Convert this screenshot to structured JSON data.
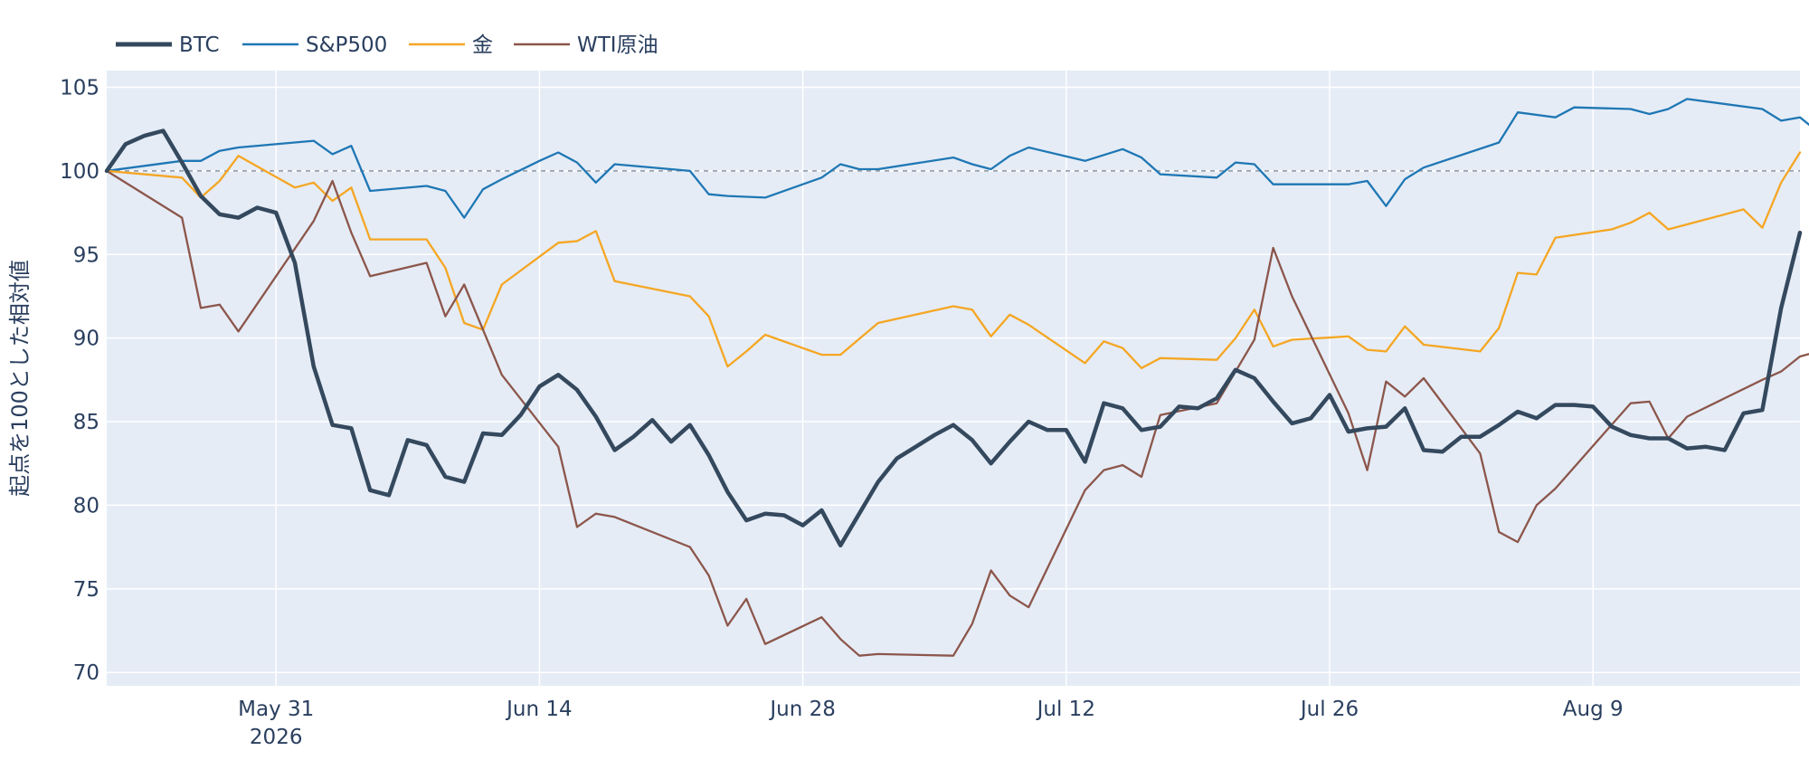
{
  "chart_data": {
    "type": "line",
    "title": "",
    "xlabel": "",
    "ylabel": "起点を100とした相対値",
    "x_start": "2026-05-22",
    "x_end": "2026-08-20",
    "x_ticks": [
      {
        "date": "2026-05-31",
        "label": "May 31",
        "sublabel": "2026"
      },
      {
        "date": "2026-06-14",
        "label": "Jun 14",
        "sublabel": ""
      },
      {
        "date": "2026-06-28",
        "label": "Jun 28",
        "sublabel": ""
      },
      {
        "date": "2026-07-12",
        "label": "Jul 12",
        "sublabel": ""
      },
      {
        "date": "2026-07-26",
        "label": "Jul 26",
        "sublabel": ""
      },
      {
        "date": "2026-08-09",
        "label": "Aug 9",
        "sublabel": ""
      }
    ],
    "ylim": [
      69.2,
      106.0
    ],
    "y_ticks": [
      70,
      75,
      80,
      85,
      90,
      95,
      100,
      105
    ],
    "reference_line": 100,
    "grid": true,
    "legend_position": "top-left",
    "series": [
      {
        "name": "BTC",
        "color": "#34495e",
        "bold": true,
        "points": [
          [
            "2026-05-22",
            100.0
          ],
          [
            "2026-05-23",
            101.6
          ],
          [
            "2026-05-24",
            102.1
          ],
          [
            "2026-05-25",
            102.4
          ],
          [
            "2026-05-26",
            100.5
          ],
          [
            "2026-05-27",
            98.5
          ],
          [
            "2026-05-28",
            97.4
          ],
          [
            "2026-05-29",
            97.2
          ],
          [
            "2026-05-30",
            97.8
          ],
          [
            "2026-05-31",
            97.5
          ],
          [
            "2026-06-01",
            94.5
          ],
          [
            "2026-06-02",
            88.3
          ],
          [
            "2026-06-03",
            84.8
          ],
          [
            "2026-06-04",
            84.6
          ],
          [
            "2026-06-05",
            80.9
          ],
          [
            "2026-06-06",
            80.6
          ],
          [
            "2026-06-07",
            83.9
          ],
          [
            "2026-06-08",
            83.6
          ],
          [
            "2026-06-09",
            81.7
          ],
          [
            "2026-06-10",
            81.4
          ],
          [
            "2026-06-11",
            84.3
          ],
          [
            "2026-06-12",
            84.2
          ],
          [
            "2026-06-13",
            85.4
          ],
          [
            "2026-06-14",
            87.1
          ],
          [
            "2026-06-15",
            87.8
          ],
          [
            "2026-06-16",
            86.9
          ],
          [
            "2026-06-17",
            85.3
          ],
          [
            "2026-06-18",
            83.3
          ],
          [
            "2026-06-19",
            84.1
          ],
          [
            "2026-06-20",
            85.1
          ],
          [
            "2026-06-21",
            83.8
          ],
          [
            "2026-06-22",
            84.8
          ],
          [
            "2026-06-23",
            83.0
          ],
          [
            "2026-06-24",
            80.8
          ],
          [
            "2026-06-25",
            79.1
          ],
          [
            "2026-06-26",
            79.5
          ],
          [
            "2026-06-27",
            79.4
          ],
          [
            "2026-06-28",
            78.8
          ],
          [
            "2026-06-29",
            79.7
          ],
          [
            "2026-06-30",
            77.6
          ],
          [
            "2026-07-01",
            79.5
          ],
          [
            "2026-07-02",
            81.4
          ],
          [
            "2026-07-03",
            82.8
          ],
          [
            "2026-07-04",
            83.5
          ],
          [
            "2026-07-05",
            84.2
          ],
          [
            "2026-07-06",
            84.8
          ],
          [
            "2026-07-07",
            83.9
          ],
          [
            "2026-07-08",
            82.5
          ],
          [
            "2026-07-09",
            83.8
          ],
          [
            "2026-07-10",
            85.0
          ],
          [
            "2026-07-11",
            84.5
          ],
          [
            "2026-07-12",
            84.5
          ],
          [
            "2026-07-13",
            82.6
          ],
          [
            "2026-07-14",
            86.1
          ],
          [
            "2026-07-15",
            85.8
          ],
          [
            "2026-07-16",
            84.5
          ],
          [
            "2026-07-17",
            84.7
          ],
          [
            "2026-07-18",
            85.9
          ],
          [
            "2026-07-19",
            85.8
          ],
          [
            "2026-07-20",
            86.4
          ],
          [
            "2026-07-21",
            88.1
          ],
          [
            "2026-07-22",
            87.6
          ],
          [
            "2026-07-23",
            86.2
          ],
          [
            "2026-07-24",
            84.9
          ],
          [
            "2026-07-25",
            85.2
          ],
          [
            "2026-07-26",
            86.6
          ],
          [
            "2026-07-27",
            84.4
          ],
          [
            "2026-07-28",
            84.6
          ],
          [
            "2026-07-29",
            84.7
          ],
          [
            "2026-07-30",
            85.8
          ],
          [
            "2026-07-31",
            83.3
          ],
          [
            "2026-08-01",
            83.2
          ],
          [
            "2026-08-02",
            84.1
          ],
          [
            "2026-08-03",
            84.1
          ],
          [
            "2026-08-04",
            84.8
          ],
          [
            "2026-08-05",
            85.6
          ],
          [
            "2026-08-06",
            85.2
          ],
          [
            "2026-08-07",
            86.0
          ],
          [
            "2026-08-08",
            86.0
          ],
          [
            "2026-08-09",
            85.9
          ],
          [
            "2026-08-10",
            84.7
          ],
          [
            "2026-08-11",
            84.2
          ],
          [
            "2026-08-12",
            84.0
          ],
          [
            "2026-08-13",
            84.0
          ],
          [
            "2026-08-14",
            83.4
          ],
          [
            "2026-08-15",
            83.5
          ],
          [
            "2026-08-16",
            83.3
          ],
          [
            "2026-08-17",
            85.5
          ],
          [
            "2026-08-18",
            85.7
          ],
          [
            "2026-08-19",
            91.8
          ],
          [
            "2026-08-20",
            96.3
          ]
        ]
      },
      {
        "name": "S&P500",
        "color": "#1f77b4",
        "bold": false,
        "points": [
          [
            "2026-05-22",
            100.0
          ],
          [
            "2026-05-26",
            100.6
          ],
          [
            "2026-05-27",
            100.6
          ],
          [
            "2026-05-28",
            101.2
          ],
          [
            "2026-05-29",
            101.4
          ],
          [
            "2026-06-02",
            101.8
          ],
          [
            "2026-06-03",
            101.0
          ],
          [
            "2026-06-04",
            101.5
          ],
          [
            "2026-06-05",
            98.8
          ],
          [
            "2026-06-08",
            99.1
          ],
          [
            "2026-06-09",
            98.8
          ],
          [
            "2026-06-10",
            97.2
          ],
          [
            "2026-06-11",
            98.9
          ],
          [
            "2026-06-12",
            99.5
          ],
          [
            "2026-06-14",
            100.6
          ],
          [
            "2026-06-15",
            101.1
          ],
          [
            "2026-06-16",
            100.5
          ],
          [
            "2026-06-17",
            99.3
          ],
          [
            "2026-06-18",
            100.4
          ],
          [
            "2026-06-22",
            100.0
          ],
          [
            "2026-06-23",
            98.6
          ],
          [
            "2026-06-24",
            98.5
          ],
          [
            "2026-06-26",
            98.4
          ],
          [
            "2026-06-29",
            99.6
          ],
          [
            "2026-06-30",
            100.4
          ],
          [
            "2026-07-01",
            100.1
          ],
          [
            "2026-07-02",
            100.1
          ],
          [
            "2026-07-06",
            100.8
          ],
          [
            "2026-07-07",
            100.4
          ],
          [
            "2026-07-08",
            100.1
          ],
          [
            "2026-07-09",
            100.9
          ],
          [
            "2026-07-10",
            101.4
          ],
          [
            "2026-07-13",
            100.6
          ],
          [
            "2026-07-15",
            101.3
          ],
          [
            "2026-07-16",
            100.8
          ],
          [
            "2026-07-17",
            99.8
          ],
          [
            "2026-07-20",
            99.6
          ],
          [
            "2026-07-21",
            100.5
          ],
          [
            "2026-07-22",
            100.4
          ],
          [
            "2026-07-23",
            99.2
          ],
          [
            "2026-07-24",
            99.2
          ],
          [
            "2026-07-27",
            99.2
          ],
          [
            "2026-07-28",
            99.4
          ],
          [
            "2026-07-29",
            97.9
          ],
          [
            "2026-07-30",
            99.5
          ],
          [
            "2026-07-31",
            100.2
          ],
          [
            "2026-08-04",
            101.7
          ],
          [
            "2026-08-05",
            103.5
          ],
          [
            "2026-08-07",
            103.2
          ],
          [
            "2026-08-08",
            103.8
          ],
          [
            "2026-08-11",
            103.7
          ],
          [
            "2026-08-12",
            103.4
          ],
          [
            "2026-08-13",
            103.7
          ],
          [
            "2026-08-14",
            104.3
          ],
          [
            "2026-08-18",
            103.7
          ],
          [
            "2026-08-19",
            103.0
          ],
          [
            "2026-08-20",
            103.2
          ],
          [
            "2026-08-21",
            102.3
          ]
        ]
      },
      {
        "name": "金",
        "color": "#f5a623",
        "bold": false,
        "points": [
          [
            "2026-05-22",
            100.0
          ],
          [
            "2026-05-26",
            99.6
          ],
          [
            "2026-05-27",
            98.4
          ],
          [
            "2026-05-28",
            99.4
          ],
          [
            "2026-05-29",
            100.9
          ],
          [
            "2026-06-01",
            99.0
          ],
          [
            "2026-06-02",
            99.3
          ],
          [
            "2026-06-03",
            98.2
          ],
          [
            "2026-06-04",
            99.0
          ],
          [
            "2026-06-05",
            95.9
          ],
          [
            "2026-06-08",
            95.9
          ],
          [
            "2026-06-09",
            94.2
          ],
          [
            "2026-06-10",
            90.9
          ],
          [
            "2026-06-11",
            90.5
          ],
          [
            "2026-06-12",
            93.2
          ],
          [
            "2026-06-15",
            95.7
          ],
          [
            "2026-06-16",
            95.8
          ],
          [
            "2026-06-17",
            96.4
          ],
          [
            "2026-06-18",
            93.4
          ],
          [
            "2026-06-22",
            92.5
          ],
          [
            "2026-06-23",
            91.3
          ],
          [
            "2026-06-24",
            88.3
          ],
          [
            "2026-06-25",
            89.2
          ],
          [
            "2026-06-26",
            90.2
          ],
          [
            "2026-06-29",
            89.0
          ],
          [
            "2026-06-30",
            89.0
          ],
          [
            "2026-07-02",
            90.9
          ],
          [
            "2026-07-06",
            91.9
          ],
          [
            "2026-07-07",
            91.7
          ],
          [
            "2026-07-08",
            90.1
          ],
          [
            "2026-07-09",
            91.4
          ],
          [
            "2026-07-10",
            90.8
          ],
          [
            "2026-07-13",
            88.5
          ],
          [
            "2026-07-14",
            89.8
          ],
          [
            "2026-07-15",
            89.4
          ],
          [
            "2026-07-16",
            88.2
          ],
          [
            "2026-07-17",
            88.8
          ],
          [
            "2026-07-20",
            88.7
          ],
          [
            "2026-07-21",
            90.0
          ],
          [
            "2026-07-22",
            91.7
          ],
          [
            "2026-07-23",
            89.5
          ],
          [
            "2026-07-24",
            89.9
          ],
          [
            "2026-07-27",
            90.1
          ],
          [
            "2026-07-28",
            89.3
          ],
          [
            "2026-07-29",
            89.2
          ],
          [
            "2026-07-30",
            90.7
          ],
          [
            "2026-07-31",
            89.6
          ],
          [
            "2026-08-03",
            89.2
          ],
          [
            "2026-08-04",
            90.6
          ],
          [
            "2026-08-05",
            93.9
          ],
          [
            "2026-08-06",
            93.8
          ],
          [
            "2026-08-07",
            96.0
          ],
          [
            "2026-08-10",
            96.5
          ],
          [
            "2026-08-11",
            96.9
          ],
          [
            "2026-08-12",
            97.5
          ],
          [
            "2026-08-13",
            96.5
          ],
          [
            "2026-08-14",
            96.8
          ],
          [
            "2026-08-17",
            97.7
          ],
          [
            "2026-08-18",
            96.6
          ],
          [
            "2026-08-19",
            99.3
          ],
          [
            "2026-08-20",
            101.1
          ]
        ]
      },
      {
        "name": "WTI原油",
        "color": "#8c564b",
        "bold": false,
        "points": [
          [
            "2026-05-22",
            100.0
          ],
          [
            "2026-05-26",
            97.2
          ],
          [
            "2026-05-27",
            91.8
          ],
          [
            "2026-05-28",
            92.0
          ],
          [
            "2026-05-29",
            90.4
          ],
          [
            "2026-06-02",
            97.0
          ],
          [
            "2026-06-03",
            99.4
          ],
          [
            "2026-06-04",
            96.3
          ],
          [
            "2026-06-05",
            93.7
          ],
          [
            "2026-06-08",
            94.5
          ],
          [
            "2026-06-09",
            91.3
          ],
          [
            "2026-06-10",
            93.2
          ],
          [
            "2026-06-11",
            90.5
          ],
          [
            "2026-06-12",
            87.8
          ],
          [
            "2026-06-15",
            83.5
          ],
          [
            "2026-06-16",
            78.7
          ],
          [
            "2026-06-17",
            79.5
          ],
          [
            "2026-06-18",
            79.3
          ],
          [
            "2026-06-22",
            77.5
          ],
          [
            "2026-06-23",
            75.8
          ],
          [
            "2026-06-24",
            72.8
          ],
          [
            "2026-06-25",
            74.4
          ],
          [
            "2026-06-26",
            71.7
          ],
          [
            "2026-06-29",
            73.3
          ],
          [
            "2026-06-30",
            72.0
          ],
          [
            "2026-07-01",
            71.0
          ],
          [
            "2026-07-02",
            71.1
          ],
          [
            "2026-07-06",
            71.0
          ],
          [
            "2026-07-07",
            72.9
          ],
          [
            "2026-07-08",
            76.1
          ],
          [
            "2026-07-09",
            74.6
          ],
          [
            "2026-07-10",
            73.9
          ],
          [
            "2026-07-13",
            80.9
          ],
          [
            "2026-07-14",
            82.1
          ],
          [
            "2026-07-15",
            82.4
          ],
          [
            "2026-07-16",
            81.7
          ],
          [
            "2026-07-17",
            85.4
          ],
          [
            "2026-07-20",
            86.1
          ],
          [
            "2026-07-22",
            89.9
          ],
          [
            "2026-07-23",
            95.4
          ],
          [
            "2026-07-24",
            92.5
          ],
          [
            "2026-07-27",
            85.5
          ],
          [
            "2026-07-28",
            82.1
          ],
          [
            "2026-07-29",
            87.4
          ],
          [
            "2026-07-30",
            86.5
          ],
          [
            "2026-07-31",
            87.6
          ],
          [
            "2026-08-03",
            83.1
          ],
          [
            "2026-08-04",
            78.4
          ],
          [
            "2026-08-05",
            77.8
          ],
          [
            "2026-08-06",
            80.0
          ],
          [
            "2026-08-07",
            81.0
          ],
          [
            "2026-08-11",
            86.1
          ],
          [
            "2026-08-12",
            86.2
          ],
          [
            "2026-08-13",
            84.0
          ],
          [
            "2026-08-14",
            85.3
          ],
          [
            "2026-08-18",
            87.5
          ],
          [
            "2026-08-19",
            88.0
          ],
          [
            "2026-08-20",
            88.9
          ],
          [
            "2026-08-21",
            89.2
          ]
        ]
      }
    ]
  }
}
